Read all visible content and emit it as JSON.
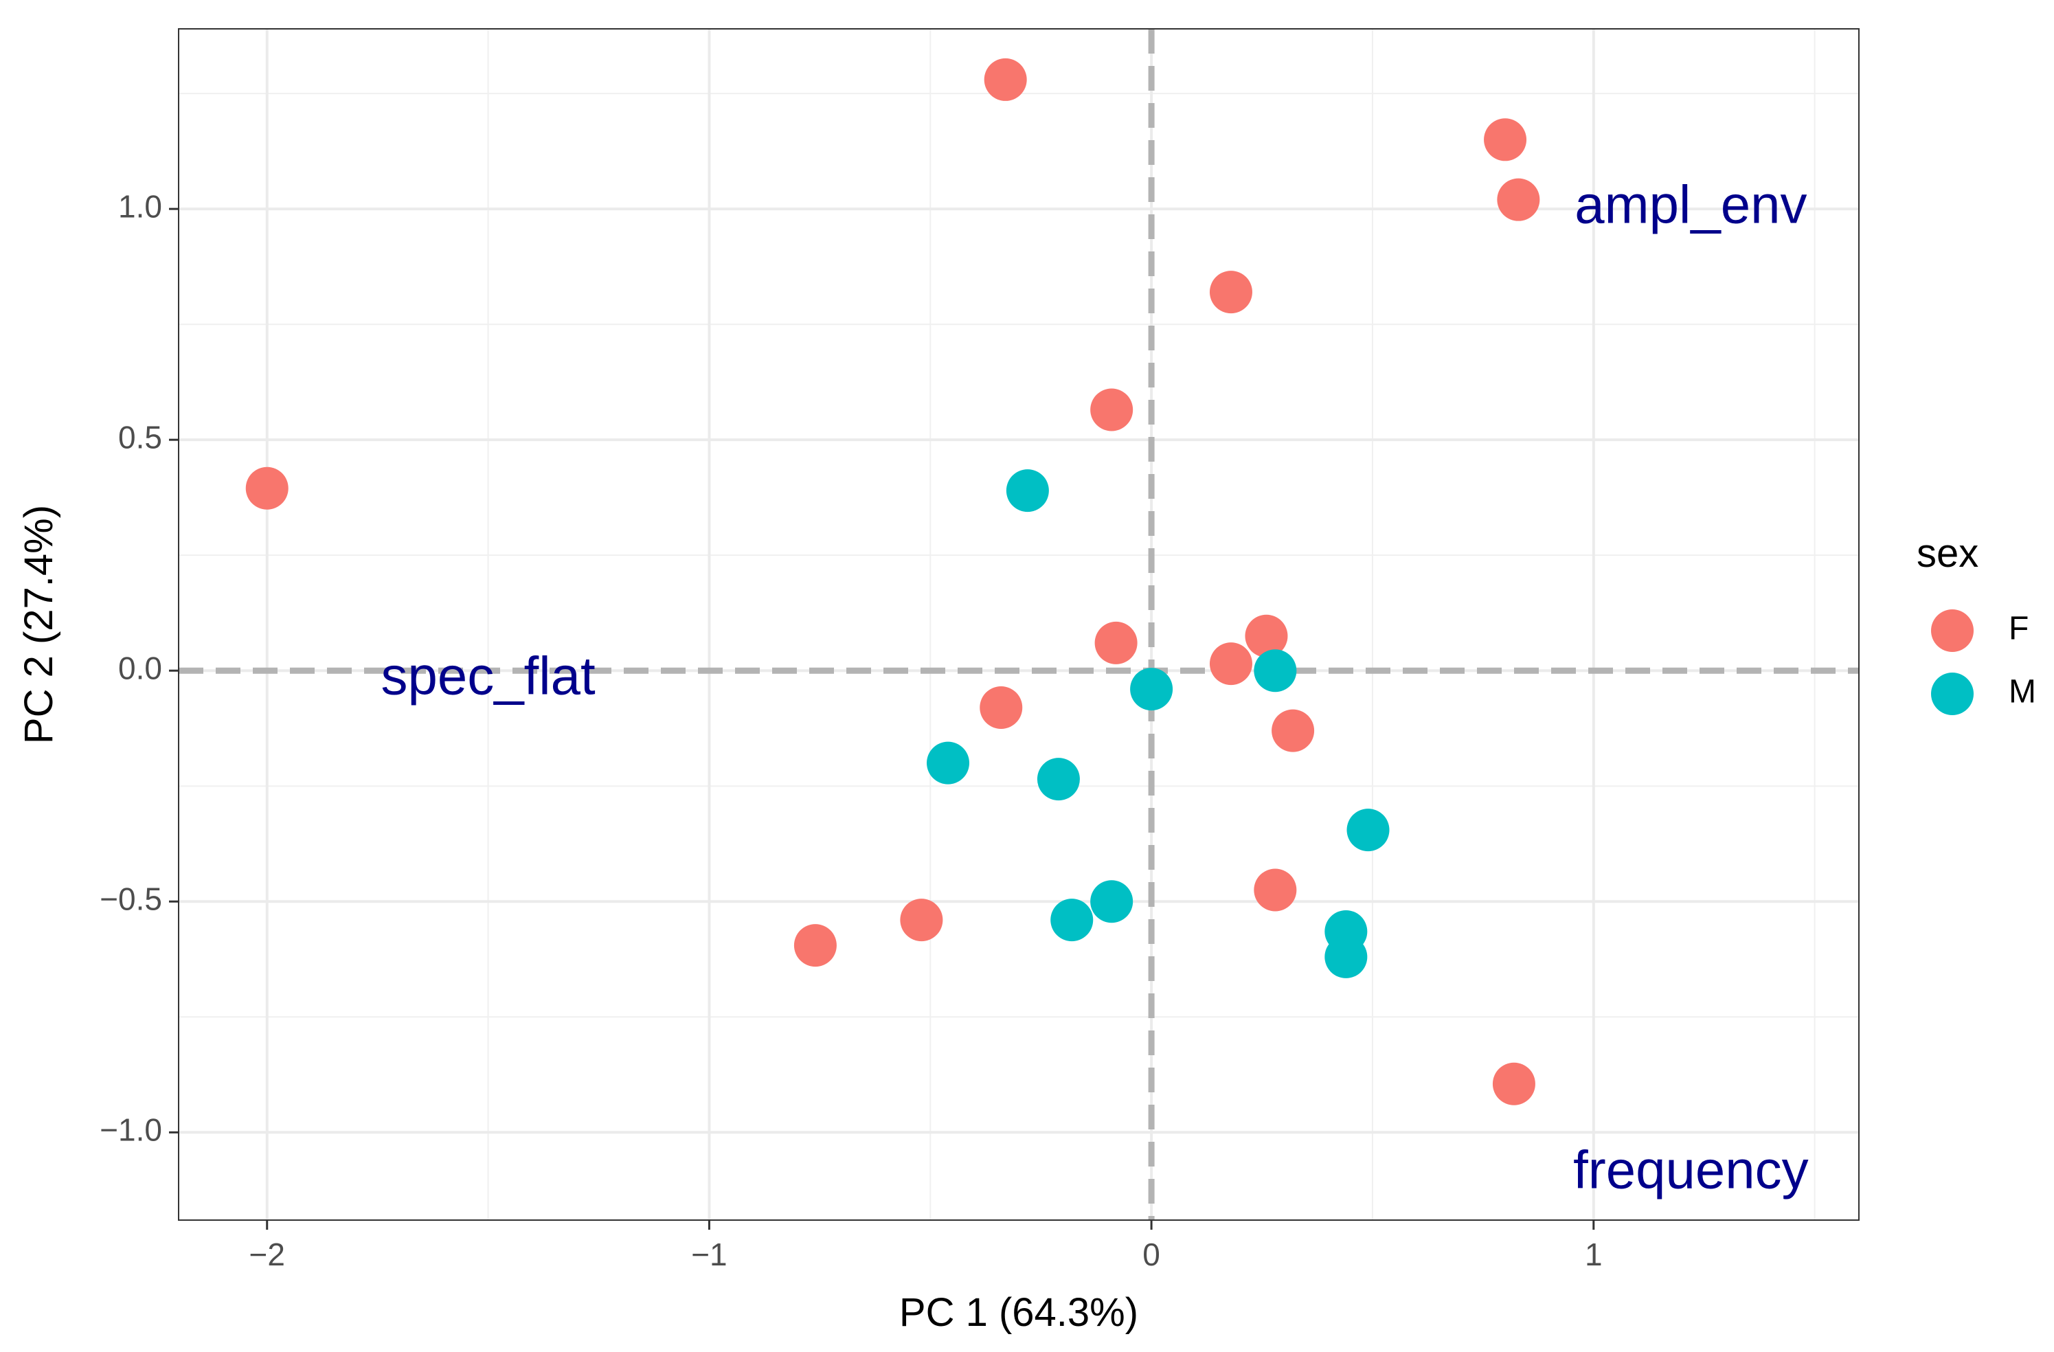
{
  "chart_data": {
    "type": "scatter",
    "title": "",
    "xlabel": "PC 1 (64.3%)",
    "ylabel": "PC 2 (27.4%)",
    "xlim": [
      -2.2,
      1.6
    ],
    "ylim": [
      -1.19,
      1.39
    ],
    "x_ticks": [
      -2,
      -1,
      0,
      1
    ],
    "x_tick_labels": [
      "−2",
      "−1",
      "0",
      "1"
    ],
    "y_ticks": [
      -1.0,
      -0.5,
      0.0,
      0.5,
      1.0
    ],
    "y_tick_labels": [
      "−1.0",
      "−0.5",
      "0.0",
      "0.5",
      "1.0"
    ],
    "grid": true,
    "reference_lines": {
      "x": 0,
      "y": 0,
      "style": "dashed",
      "color": "#b3b3b3"
    },
    "loading_labels": [
      {
        "text": "ampl_env",
        "x": 1.22,
        "y": 1.0
      },
      {
        "text": "spec_flat",
        "x": -1.5,
        "y": -0.02
      },
      {
        "text": "frequency",
        "x": 1.22,
        "y": -1.09
      }
    ],
    "legend": {
      "title": "sex",
      "position": "right"
    },
    "series": [
      {
        "name": "F",
        "color": "#F8766D",
        "points": [
          {
            "x": -2.0,
            "y": 0.395
          },
          {
            "x": -0.33,
            "y": 1.28
          },
          {
            "x": 0.8,
            "y": 1.15
          },
          {
            "x": 0.83,
            "y": 1.02
          },
          {
            "x": 0.18,
            "y": 0.82
          },
          {
            "x": -0.09,
            "y": 0.565
          },
          {
            "x": -0.08,
            "y": 0.06
          },
          {
            "x": 0.26,
            "y": 0.075
          },
          {
            "x": 0.18,
            "y": 0.015
          },
          {
            "x": 0.32,
            "y": -0.13
          },
          {
            "x": -0.34,
            "y": -0.08
          },
          {
            "x": 0.28,
            "y": -0.475
          },
          {
            "x": -0.52,
            "y": -0.54
          },
          {
            "x": -0.76,
            "y": -0.595
          },
          {
            "x": 0.82,
            "y": -0.895
          }
        ]
      },
      {
        "name": "M",
        "color": "#00BFC4",
        "points": [
          {
            "x": -0.28,
            "y": 0.39
          },
          {
            "x": 0.0,
            "y": -0.04
          },
          {
            "x": 0.28,
            "y": 0.0
          },
          {
            "x": -0.46,
            "y": -0.2
          },
          {
            "x": -0.21,
            "y": -0.235
          },
          {
            "x": 0.49,
            "y": -0.345
          },
          {
            "x": -0.09,
            "y": -0.5
          },
          {
            "x": -0.18,
            "y": -0.54
          },
          {
            "x": 0.44,
            "y": -0.565
          },
          {
            "x": 0.44,
            "y": -0.62
          }
        ]
      }
    ]
  }
}
